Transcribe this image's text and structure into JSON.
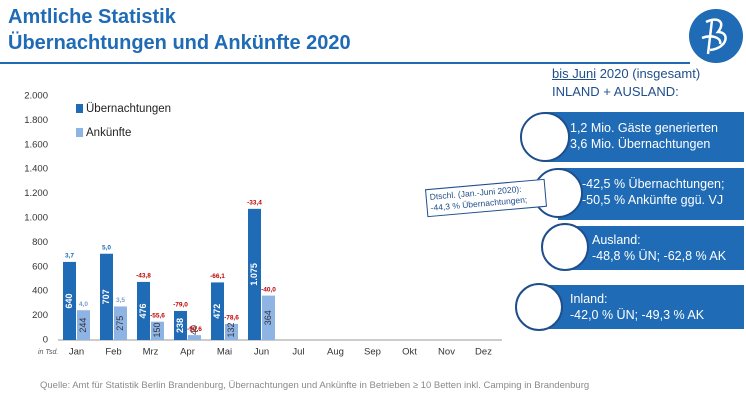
{
  "header": {
    "title_line1": "Amtliche Statistik",
    "title_line2": "Übernachtungen und Ankünfte 2020"
  },
  "chart_data": {
    "type": "bar",
    "categories": [
      "Jan",
      "Feb",
      "Mrz",
      "Apr",
      "Mai",
      "Jun",
      "Jul",
      "Aug",
      "Sep",
      "Okt",
      "Nov",
      "Dez"
    ],
    "series": [
      {
        "name": "Übernachtungen",
        "color": "#1f6bb5",
        "values": [
          640,
          707,
          476,
          238,
          472,
          1075,
          null,
          null,
          null,
          null,
          null,
          null
        ],
        "value_labels": [
          "640",
          "707",
          "476",
          "238",
          "472",
          "1.075",
          null,
          null,
          null,
          null,
          null,
          null
        ],
        "change_labels": [
          "3,7",
          "5,0",
          "-43,8",
          "-79,0",
          "-66,1",
          "-33,4",
          null,
          null,
          null,
          null,
          null,
          null
        ]
      },
      {
        "name": "Ankünfte",
        "color": "#8db4e2",
        "values": [
          244,
          275,
          150,
          40,
          132,
          364,
          null,
          null,
          null,
          null,
          null,
          null
        ],
        "change_labels": [
          "4,0",
          "3,5",
          "-55,6",
          "-90,6",
          "-78,6",
          "-40,0",
          null,
          null,
          null,
          null,
          null,
          null
        ]
      }
    ],
    "ylim": [
      0,
      2000
    ],
    "yticks": [
      0,
      200,
      400,
      600,
      800,
      {
        "value": 1000,
        "label": "1.000"
      },
      {
        "value": 1200,
        "label": "1.200"
      },
      {
        "value": 1400,
        "label": "1.400"
      },
      {
        "value": 1600,
        "label": "1.600"
      },
      {
        "value": 1800,
        "label": "1.800"
      },
      {
        "value": 2000,
        "label": "2.000"
      }
    ],
    "unit_label": "in Tsd.",
    "grid": false
  },
  "summary": {
    "heading_underlined": "bis Juni",
    "heading_rest": "2020 (insgesamt)",
    "heading_line2": "INLAND + AUSLAND:",
    "boxes": [
      {
        "lines": [
          "1,2 Mio. Gäste generierten",
          "3,6 Mio. Übernachtungen"
        ]
      },
      {
        "lines": [
          "-42,5 % Übernachtungen;",
          "-50,5 % Ankünfte ggü. VJ"
        ]
      },
      {
        "lines": [
          "Ausland:",
          "-48,8 % ÜN; -62,8 % AK"
        ]
      },
      {
        "lines": [
          "Inland:",
          "-42,0 % ÜN; -49,3 % AK"
        ]
      }
    ],
    "callout": {
      "lines": [
        "Dtschl. (Jan.-Juni 2020):",
        "-44,3 % Übernachtungen;"
      ]
    }
  },
  "source": "Quelle: Amt für Statistik Berlin Brandenburg, Übernachtungen und Ankünfte in Betrieben ≥ 10 Betten inkl. Camping in Brandenburg"
}
